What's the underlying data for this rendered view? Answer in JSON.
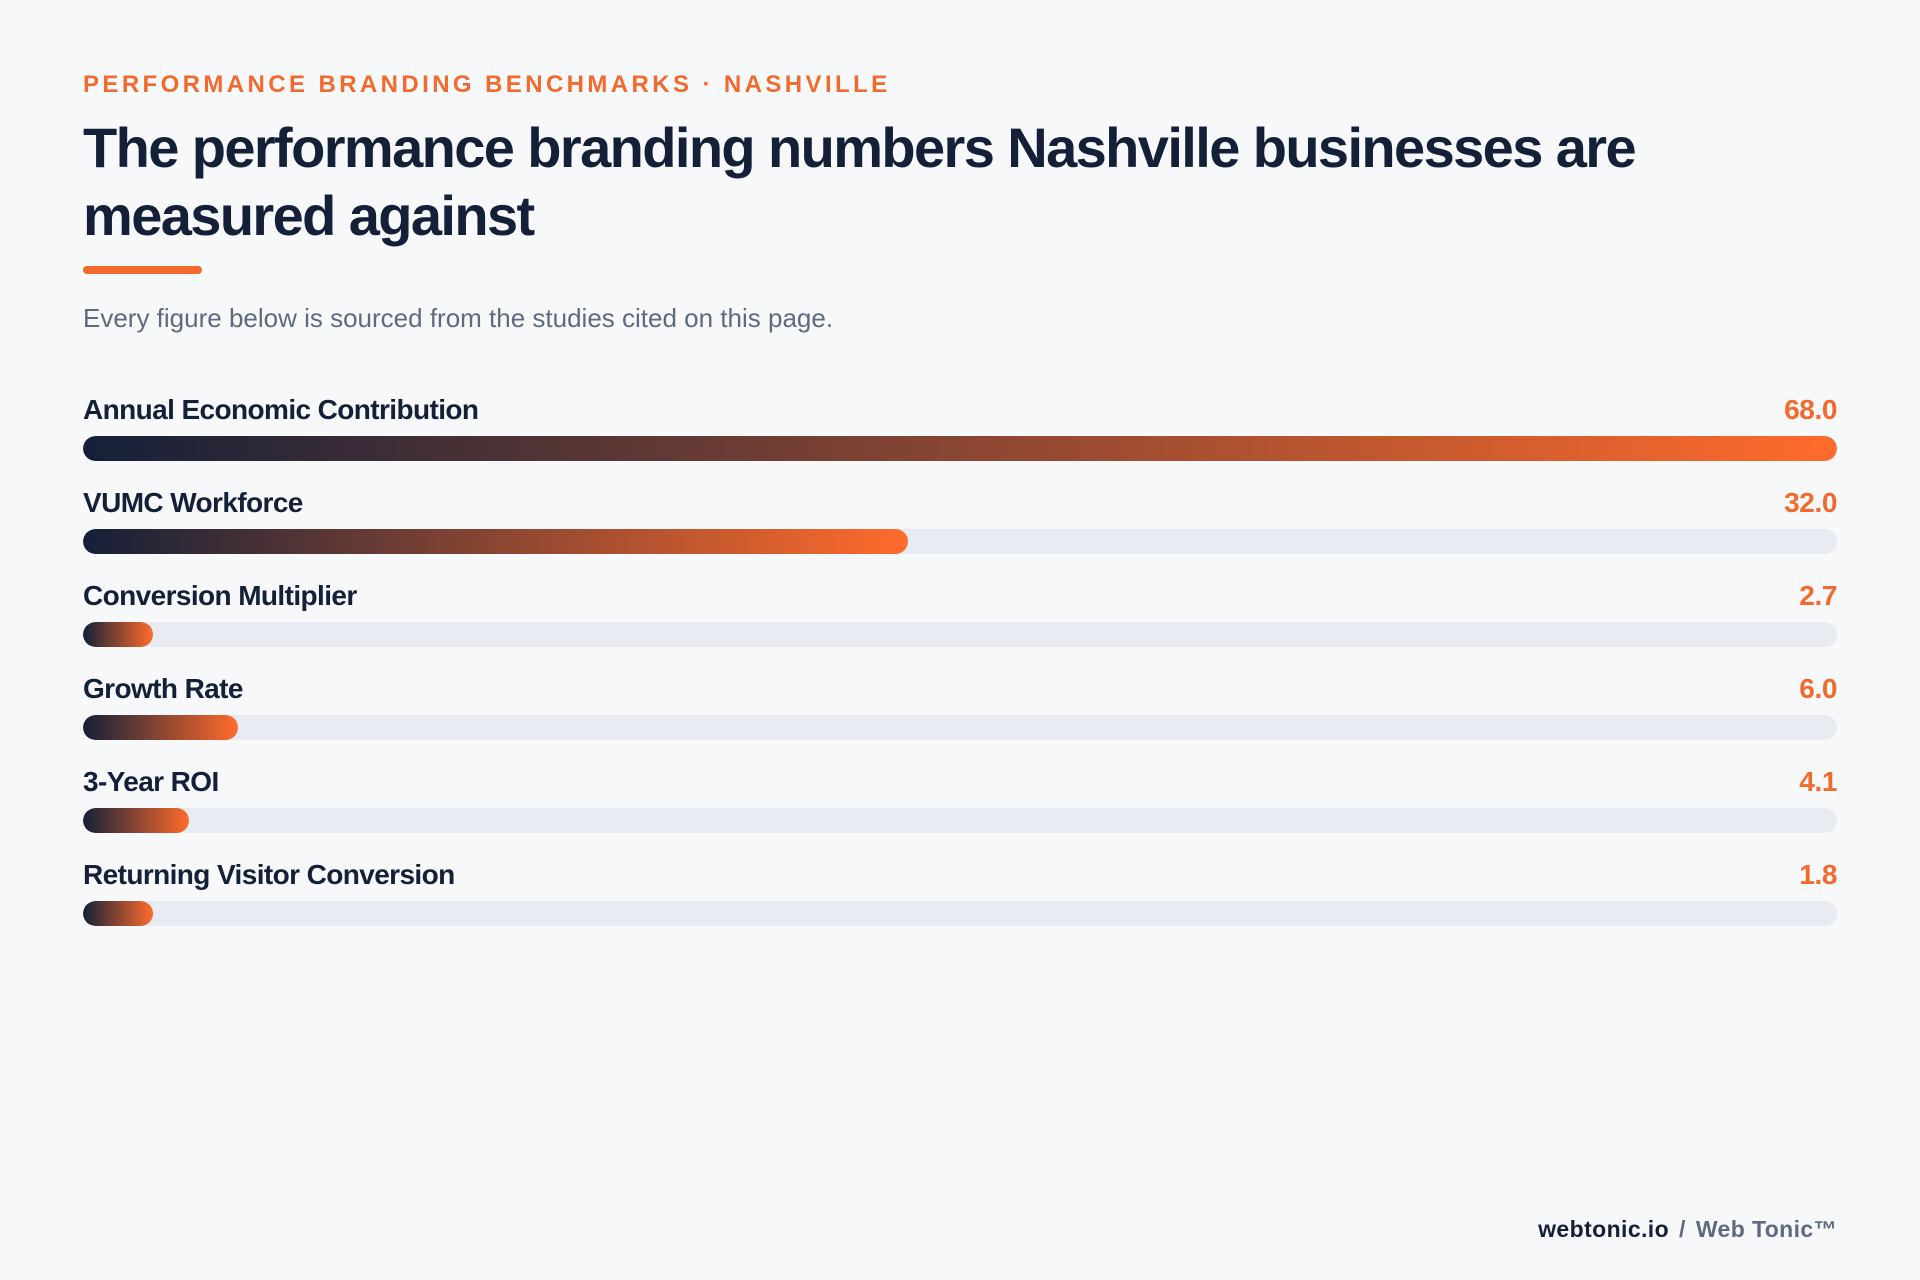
{
  "header": {
    "eyebrow": "PERFORMANCE BRANDING BENCHMARKS · NASHVILLE",
    "title": "The performance branding numbers Nashville businesses are measured against",
    "subtitle": "Every figure below is sourced from the studies cited on this page."
  },
  "colors": {
    "accent": "#f26a2e",
    "navy": "#142038",
    "track": "#e8ebf1",
    "background": "#f6f8fa"
  },
  "chart_data": {
    "type": "bar",
    "orientation": "horizontal",
    "categories": [
      "Annual Economic Contribution",
      "VUMC Workforce",
      "Conversion Multiplier",
      "Growth Rate",
      "3-Year ROI",
      "Returning Visitor Conversion"
    ],
    "values": [
      68.0,
      32.0,
      2.7,
      6.0,
      4.1,
      1.8
    ],
    "value_labels": [
      "68.0",
      "32.0",
      "2.7",
      "6.0",
      "4.1",
      "1.8"
    ],
    "xlim": [
      0,
      68.0
    ],
    "grid": false
  },
  "footer": {
    "domain": "webtonic.io",
    "separator": "/",
    "brand": "Web Tonic™"
  }
}
